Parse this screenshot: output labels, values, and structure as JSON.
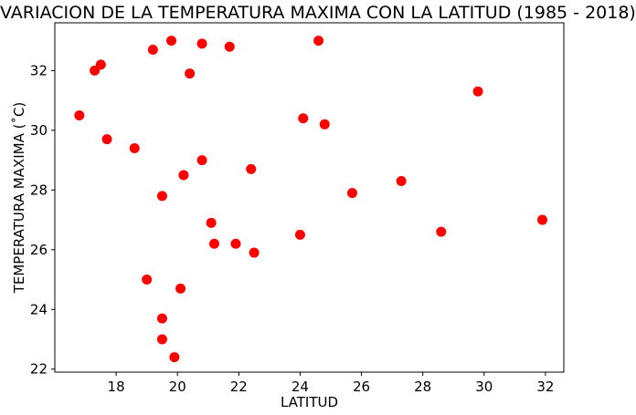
{
  "chart_data": {
    "type": "scatter",
    "title": "VARIACION DE LA TEMPERATURA MAXIMA CON LA LATITUD (1985 - 2018)",
    "xlabel": "LATITUD",
    "ylabel": "TEMPERATURA MAXIMA (˚C)",
    "xlim": [
      16,
      32.6
    ],
    "ylim": [
      21.9,
      33.6
    ],
    "xticks": [
      18,
      20,
      22,
      24,
      26,
      28,
      30,
      32
    ],
    "yticks": [
      22,
      24,
      26,
      28,
      30,
      32
    ],
    "grid": false,
    "legend": "none",
    "marker_color": "#ff0000",
    "points": [
      {
        "x": 16.8,
        "y": 30.5
      },
      {
        "x": 17.3,
        "y": 32.0
      },
      {
        "x": 17.5,
        "y": 32.2
      },
      {
        "x": 17.7,
        "y": 29.7
      },
      {
        "x": 18.6,
        "y": 29.4
      },
      {
        "x": 19.0,
        "y": 25.0
      },
      {
        "x": 19.2,
        "y": 32.7
      },
      {
        "x": 19.5,
        "y": 27.8
      },
      {
        "x": 19.5,
        "y": 23.7
      },
      {
        "x": 19.5,
        "y": 23.0
      },
      {
        "x": 19.8,
        "y": 33.0
      },
      {
        "x": 19.9,
        "y": 22.4
      },
      {
        "x": 20.1,
        "y": 24.7
      },
      {
        "x": 20.2,
        "y": 28.5
      },
      {
        "x": 20.4,
        "y": 31.9
      },
      {
        "x": 20.8,
        "y": 29.0
      },
      {
        "x": 20.8,
        "y": 32.9
      },
      {
        "x": 21.1,
        "y": 26.9
      },
      {
        "x": 21.2,
        "y": 26.2
      },
      {
        "x": 21.7,
        "y": 32.8
      },
      {
        "x": 21.9,
        "y": 26.2
      },
      {
        "x": 22.4,
        "y": 28.7
      },
      {
        "x": 22.5,
        "y": 25.9
      },
      {
        "x": 24.0,
        "y": 26.5
      },
      {
        "x": 24.1,
        "y": 30.4
      },
      {
        "x": 24.6,
        "y": 33.0
      },
      {
        "x": 24.8,
        "y": 30.2
      },
      {
        "x": 25.7,
        "y": 27.9
      },
      {
        "x": 27.3,
        "y": 28.3
      },
      {
        "x": 28.6,
        "y": 26.6
      },
      {
        "x": 29.8,
        "y": 31.3
      },
      {
        "x": 31.9,
        "y": 27.0
      }
    ]
  }
}
